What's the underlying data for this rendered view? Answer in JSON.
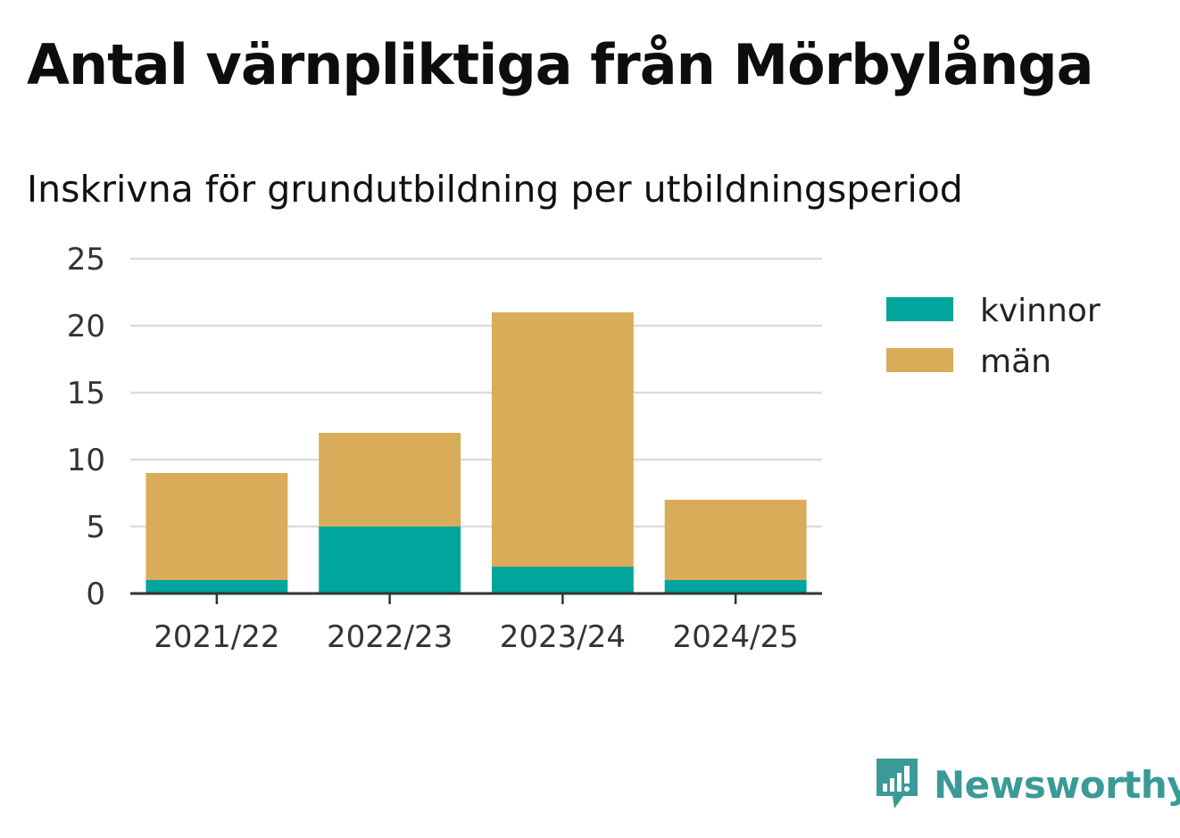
{
  "title": "Antal värnpliktiga från Mörbylånga",
  "subtitle": "Inskrivna för grundutbildning per utbildningsperiod",
  "brand": {
    "name": "Newsworthy",
    "icon": "newsworthy-logo-icon",
    "color": "#3a9a97"
  },
  "chart_data": {
    "type": "bar",
    "stacked": true,
    "categories": [
      "2021/22",
      "2022/23",
      "2023/24",
      "2024/25"
    ],
    "series": [
      {
        "name": "kvinnor",
        "values": [
          1,
          5,
          2,
          1
        ],
        "color": "#00a59c"
      },
      {
        "name": "män",
        "values": [
          8,
          7,
          19,
          6
        ],
        "color": "#d9ac5a"
      }
    ],
    "yticks": [
      0,
      5,
      10,
      15,
      20,
      25
    ],
    "ylim": [
      0,
      25
    ],
    "grid": true,
    "legend_position": "right"
  }
}
